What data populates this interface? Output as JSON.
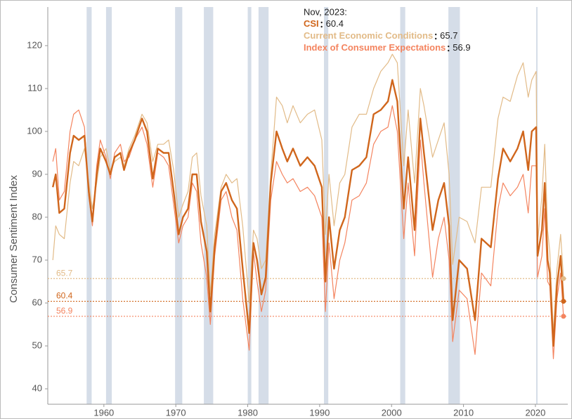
{
  "chart_data": {
    "type": "line",
    "y_label": "Consumer Sentiment Index",
    "legend_title": "Nov, 2023:",
    "xlim": [
      1952.2,
      2024.5
    ],
    "xticks": [
      1960,
      1970,
      1980,
      1990,
      2000,
      2010,
      2020
    ],
    "ylim": [
      36.4,
      129
    ],
    "yticks": [
      40,
      50,
      60,
      70,
      80,
      90,
      100,
      110,
      120
    ],
    "recession_color": "#d5dde8",
    "recessions": [
      [
        1957.6,
        1958.3
      ],
      [
        1960.3,
        1961.1
      ],
      [
        1969.9,
        1970.9
      ],
      [
        1973.9,
        1975.2
      ],
      [
        1980.0,
        1980.5
      ],
      [
        1981.5,
        1982.9
      ],
      [
        1990.6,
        1991.2
      ],
      [
        2001.2,
        2001.9
      ],
      [
        2007.9,
        2009.5
      ],
      [
        2020.1,
        2020.3
      ]
    ],
    "x": [
      1952.9,
      1953.3,
      1953.8,
      1954.5,
      1955.3,
      1955.8,
      1956.5,
      1957.3,
      1957.9,
      1958.4,
      1959.0,
      1959.5,
      1960.3,
      1960.9,
      1961.5,
      1962.3,
      1962.8,
      1963.5,
      1964.3,
      1965.3,
      1966.0,
      1966.8,
      1967.5,
      1968.3,
      1969.0,
      1969.7,
      1970.4,
      1971.0,
      1971.7,
      1972.3,
      1972.9,
      1973.5,
      1974.3,
      1974.8,
      1975.4,
      1976.3,
      1977.0,
      1977.8,
      1978.5,
      1979.3,
      1980.2,
      1980.8,
      1981.3,
      1981.9,
      1982.5,
      1983.2,
      1984.0,
      1984.8,
      1985.5,
      1986.3,
      1987.3,
      1988.3,
      1989.3,
      1990.3,
      1990.8,
      1991.3,
      1992.0,
      1992.8,
      1993.5,
      1994.5,
      1995.5,
      1996.5,
      1997.5,
      1998.5,
      1999.5,
      2000.1,
      2000.8,
      2001.7,
      2002.3,
      2003.2,
      2004.0,
      2004.5,
      2005.7,
      2006.5,
      2007.3,
      2008.0,
      2008.5,
      2009.4,
      2010.5,
      2011.6,
      2012.5,
      2013.8,
      2014.8,
      2015.5,
      2016.5,
      2017.5,
      2018.3,
      2019.0,
      2019.5,
      2020.1,
      2020.3,
      2020.9,
      2021.3,
      2021.7,
      2022.0,
      2022.5,
      2023.0,
      2023.5,
      2023.9
    ],
    "series": [
      {
        "name": "Current Economic Conditions",
        "color": "#e2bb88",
        "width": 1.2,
        "values": [
          70,
          78,
          76,
          75,
          88,
          93,
          92,
          96,
          88,
          82,
          88,
          94,
          96,
          91,
          93,
          94,
          92,
          96,
          99,
          104,
          102,
          93,
          97,
          97,
          98,
          91,
          80,
          83,
          86,
          94,
          95,
          85,
          78,
          62,
          76,
          87,
          90,
          88,
          89,
          78,
          60,
          77,
          75,
          68,
          70,
          90,
          108,
          106,
          102,
          106,
          102,
          104,
          105,
          98,
          76,
          90,
          78,
          88,
          90,
          101,
          104,
          104,
          110,
          114,
          116,
          118,
          116,
          92,
          105,
          88,
          110,
          106,
          94,
          98,
          102,
          90,
          69,
          80,
          79,
          74,
          87,
          87,
          103,
          108,
          107,
          113,
          116,
          108,
          112,
          114,
          74,
          85,
          97,
          77,
          72,
          53,
          68,
          76,
          65.7
        ]
      },
      {
        "name": "Index of Consumer Expectations",
        "color": "#f4845f",
        "width": 1.2,
        "values": [
          93,
          96,
          84,
          86,
          100,
          104,
          105,
          101,
          85,
          78,
          92,
          98,
          94,
          89,
          95,
          97,
          93,
          94,
          98,
          101,
          97,
          87,
          95,
          94,
          92,
          83,
          74,
          78,
          80,
          88,
          86,
          74,
          66,
          55,
          71,
          84,
          86,
          80,
          77,
          61,
          49,
          72,
          65,
          58,
          63,
          84,
          93,
          90,
          88,
          89,
          86,
          87,
          85,
          80,
          58,
          74,
          61,
          70,
          74,
          84,
          85,
          88,
          97,
          100,
          101,
          106,
          100,
          75,
          88,
          71,
          98,
          88,
          66,
          75,
          80,
          70,
          51,
          63,
          61,
          48,
          67,
          64,
          82,
          88,
          85,
          87,
          90,
          81,
          92,
          92,
          66,
          71,
          82,
          65,
          64,
          47,
          61,
          67,
          56.9
        ]
      },
      {
        "name": "CSI",
        "color": "#d0661c",
        "width": 2.4,
        "values": [
          87,
          90,
          81,
          82,
          95,
          99,
          98,
          99,
          86,
          79,
          90,
          96,
          93,
          90,
          94,
          95,
          91,
          95,
          98,
          103,
          100,
          89,
          96,
          95,
          95,
          86,
          76,
          80,
          82,
          90,
          90,
          79,
          72,
          58,
          73,
          86,
          88,
          84,
          82,
          68,
          53,
          74,
          70,
          62,
          66,
          88,
          100,
          96,
          93,
          96,
          92,
          94,
          92,
          87,
          65,
          80,
          68,
          77,
          80,
          91,
          92,
          94,
          104,
          105,
          107,
          112,
          107,
          82,
          94,
          77,
          103,
          95,
          77,
          84,
          88,
          78,
          56,
          70,
          68,
          56,
          75,
          73,
          89,
          96,
          93,
          96,
          100,
          91,
          100,
          101,
          71,
          77,
          88,
          70,
          67,
          50,
          64,
          71,
          60.4
        ]
      }
    ]
  }
}
